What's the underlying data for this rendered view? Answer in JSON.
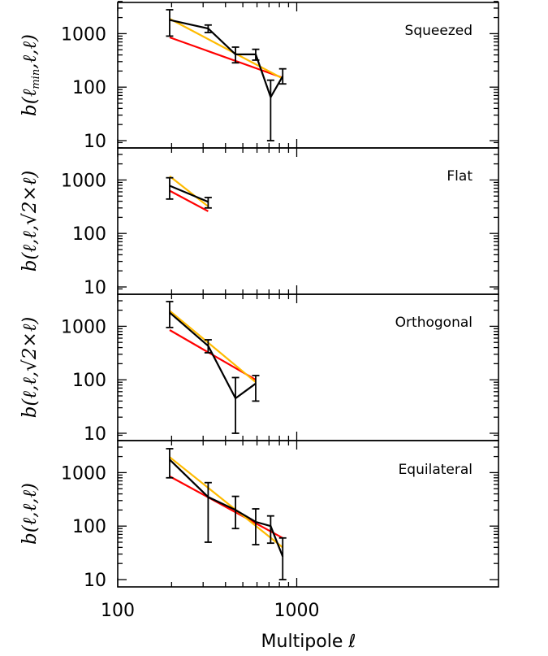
{
  "chart_data": [
    {
      "type": "line",
      "title": "Squeezed",
      "ylabel": "b(ℓmin,ℓ,ℓ)",
      "ylabel_parts": {
        "pre": "b(ℓ",
        "sub": "min",
        "post": ",ℓ,ℓ)"
      },
      "xscale": "log",
      "yscale": "log",
      "xlim": [
        100,
        1000
      ],
      "ylim": [
        10,
        5000
      ],
      "yticks": [
        10,
        100,
        1000
      ],
      "ytick_labels": [
        "10",
        "100",
        "1000"
      ],
      "series": [
        {
          "color": "#000000",
          "kind": "measurement",
          "x": [
            195,
            320,
            455,
            590,
            715,
            835
          ],
          "y": [
            1800,
            1250,
            410,
            410,
            65,
            160
          ],
          "err_low": [
            900,
            1050,
            285,
            320,
            10,
            115
          ],
          "err_high": [
            2800,
            1450,
            560,
            510,
            135,
            220
          ]
        },
        {
          "color": "#ff0000",
          "kind": "model",
          "x": [
            195,
            835
          ],
          "y": [
            850,
            150
          ]
        },
        {
          "color": "#ffbb00",
          "kind": "model",
          "x": [
            195,
            835
          ],
          "y": [
            1900,
            145
          ]
        }
      ]
    },
    {
      "type": "line",
      "title": "Flat",
      "ylabel": "b(ℓ,ℓ,√2×ℓ)",
      "xscale": "log",
      "yscale": "log",
      "xlim": [
        100,
        1000
      ],
      "ylim": [
        10,
        5000
      ],
      "yticks": [
        10,
        100,
        1000
      ],
      "ytick_labels": [
        "10",
        "100",
        "1000"
      ],
      "series": [
        {
          "color": "#000000",
          "kind": "measurement",
          "x": [
            195,
            320
          ],
          "y": [
            780,
            390
          ],
          "err_low": [
            440,
            300
          ],
          "err_high": [
            1100,
            470
          ]
        },
        {
          "color": "#ff0000",
          "kind": "model",
          "x": [
            195,
            320
          ],
          "y": [
            630,
            260
          ]
        },
        {
          "color": "#ffbb00",
          "kind": "model",
          "x": [
            195,
            320
          ],
          "y": [
            1180,
            320
          ]
        }
      ]
    },
    {
      "type": "line",
      "title": "Orthogonal",
      "ylabel": "b(ℓ,ℓ,√2×ℓ)",
      "xscale": "log",
      "yscale": "log",
      "xlim": [
        100,
        1000
      ],
      "ylim": [
        10,
        5000
      ],
      "yticks": [
        10,
        100,
        1000
      ],
      "ytick_labels": [
        "10",
        "100",
        "1000"
      ],
      "series": [
        {
          "color": "#000000",
          "kind": "measurement",
          "x": [
            195,
            320,
            455,
            590
          ],
          "y": [
            1800,
            430,
            45,
            85
          ],
          "err_low": [
            950,
            320,
            10,
            40
          ],
          "err_high": [
            2900,
            560,
            110,
            120
          ]
        },
        {
          "color": "#ff0000",
          "kind": "model",
          "x": [
            195,
            590
          ],
          "y": [
            850,
            100
          ]
        },
        {
          "color": "#ffbb00",
          "kind": "model",
          "x": [
            195,
            590
          ],
          "y": [
            1950,
            90
          ]
        }
      ]
    },
    {
      "type": "line",
      "title": "Equilateral",
      "ylabel": "b(ℓ,ℓ,ℓ)",
      "xscale": "log",
      "yscale": "log",
      "xlim": [
        100,
        1000
      ],
      "ylim": [
        10,
        5000
      ],
      "yticks": [
        10,
        100,
        1000
      ],
      "ytick_labels": [
        "10",
        "100",
        "1000"
      ],
      "xticks": [
        100,
        1000
      ],
      "xtick_labels": [
        "100",
        "1000"
      ],
      "xlabel": "Multipole ℓ",
      "series": [
        {
          "color": "#000000",
          "kind": "measurement",
          "x": [
            195,
            320,
            455,
            590,
            715,
            835
          ],
          "y": [
            1750,
            350,
            200,
            120,
            100,
            27
          ],
          "err_low": [
            800,
            50,
            90,
            45,
            48,
            10
          ],
          "err_high": [
            2800,
            650,
            360,
            210,
            155,
            60
          ]
        },
        {
          "color": "#ff0000",
          "kind": "model",
          "x": [
            195,
            835
          ],
          "y": [
            850,
            60
          ]
        },
        {
          "color": "#ffbb00",
          "kind": "model",
          "x": [
            195,
            835
          ],
          "y": [
            1950,
            40
          ]
        }
      ]
    }
  ]
}
